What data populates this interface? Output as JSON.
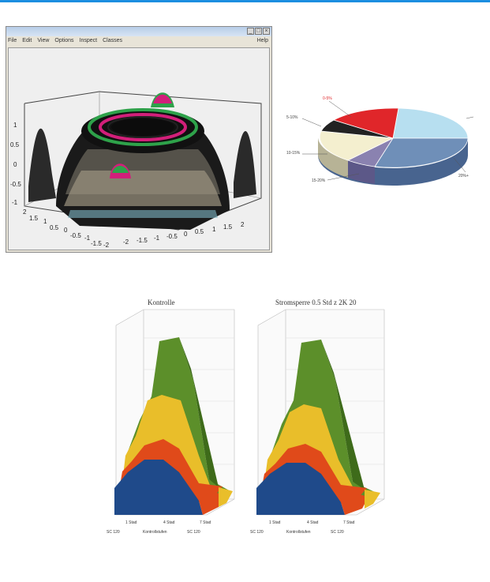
{
  "window": {
    "menu": [
      "File",
      "Edit",
      "View",
      "Options",
      "Inspect",
      "Classes"
    ],
    "help": "Help",
    "buttons": [
      "_",
      "□",
      "×"
    ]
  },
  "surface_plot": {
    "z_ticks": [
      "1",
      "0.5",
      "0",
      "-0.5",
      "-1"
    ],
    "x_ticks": [
      "-2",
      "-1.5",
      "-1",
      "-0.5",
      "0",
      "0.5",
      "1",
      "1.5",
      "2"
    ],
    "y_ticks": [
      "2",
      "1.5",
      "1",
      "0.5",
      "0",
      "-0.5",
      "-1",
      "-1.5",
      "-2"
    ]
  },
  "pie": {
    "labels": [
      "0-5%",
      "5-10%",
      "10-15%",
      "15-20%",
      "20%+"
    ],
    "colors": [
      "#e0262a",
      "#b7dff0",
      "#6f8fb8",
      "#8a82b0",
      "#f4efcf"
    ]
  },
  "lego_left": {
    "title": "Kontrolle",
    "x_labels": [
      "1 Stad",
      "4 Stad",
      "7 Stad"
    ],
    "bottom_labels": [
      "SC 120",
      "Kontrollstufen",
      "SC 120"
    ]
  },
  "lego_right": {
    "title": "Stromsperre 0.5 Std z 2K 20",
    "x_labels": [
      "1 Stad",
      "4 Stad",
      "7 Stad"
    ],
    "bottom_labels": [
      "SC 120",
      "Kontrollstufen",
      "SC 120"
    ]
  },
  "colors": {
    "accent": "#1c8ee0",
    "layer_blue": "#1f4a8a",
    "layer_red": "#e04a1a",
    "layer_yellow": "#e9be2a",
    "layer_green": "#5c8f2a"
  }
}
